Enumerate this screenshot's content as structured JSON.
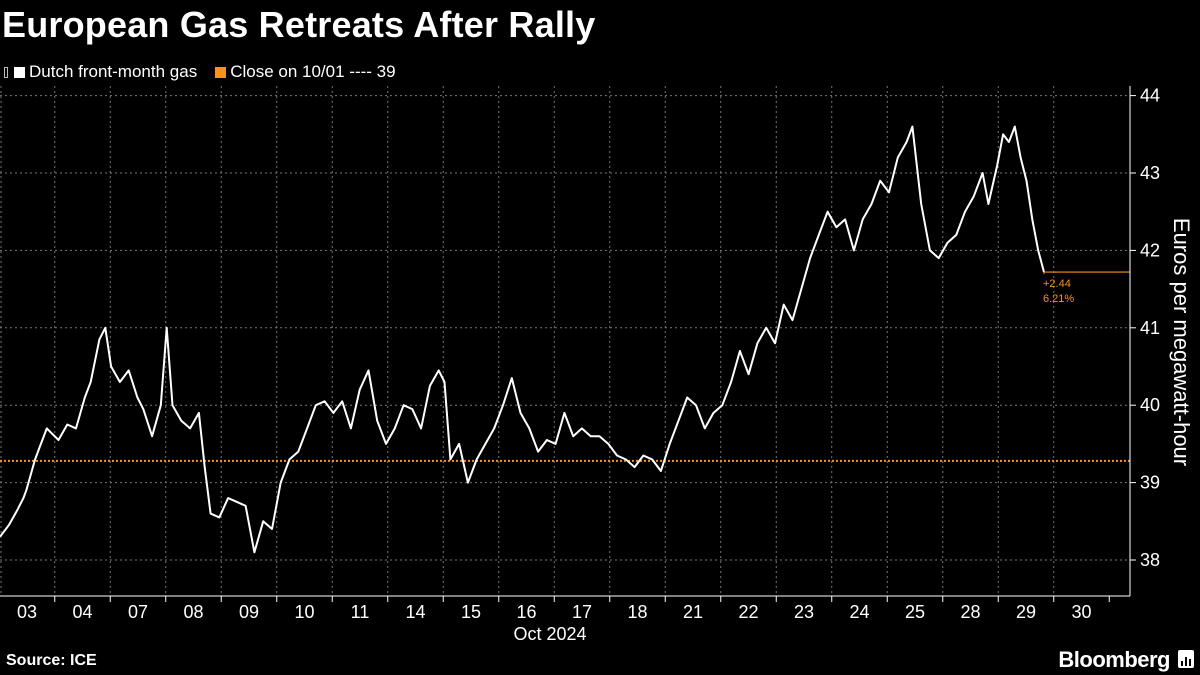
{
  "title": "European Gas Retreats After Rally",
  "legend": [
    {
      "label": "Dutch front-month gas",
      "color": "#ffffff"
    },
    {
      "label": "Close on 10/01 ---- 39",
      "color": "#f7931e"
    }
  ],
  "source": "Source: ICE",
  "brand": "Bloomberg",
  "annotation": {
    "change": "+2.44",
    "pct": "6.21%"
  },
  "chart_data": {
    "type": "line",
    "title": "European Gas Retreats After Rally",
    "ylabel": "Euros per megawatt-hour",
    "xlabel": "Oct 2024",
    "ylim": [
      37.5,
      44.2
    ],
    "yticks": [
      38,
      39,
      40,
      41,
      42,
      43,
      44
    ],
    "xticks": [
      "03",
      "04",
      "07",
      "08",
      "09",
      "10",
      "11",
      "14",
      "15",
      "16",
      "17",
      "18",
      "21",
      "22",
      "23",
      "24",
      "25",
      "28",
      "29",
      "30"
    ],
    "reference_line": {
      "label": "Close on 10/01",
      "value": 39.28
    },
    "last_value": 41.72,
    "series": [
      {
        "name": "Dutch front-month gas",
        "points": [
          [
            0.0,
            38.3
          ],
          [
            0.15,
            38.45
          ],
          [
            0.3,
            38.65
          ],
          [
            0.4,
            38.8
          ],
          [
            0.45,
            38.9
          ],
          [
            0.6,
            39.3
          ],
          [
            0.7,
            39.5
          ],
          [
            0.8,
            39.7
          ],
          [
            1.0,
            39.55
          ],
          [
            1.15,
            39.75
          ],
          [
            1.3,
            39.7
          ],
          [
            1.45,
            40.1
          ],
          [
            1.55,
            40.3
          ],
          [
            1.7,
            40.85
          ],
          [
            1.8,
            41.0
          ],
          [
            1.9,
            40.5
          ],
          [
            2.05,
            40.3
          ],
          [
            2.2,
            40.45
          ],
          [
            2.35,
            40.1
          ],
          [
            2.45,
            39.95
          ],
          [
            2.6,
            39.6
          ],
          [
            2.75,
            40.0
          ],
          [
            2.85,
            41.0
          ],
          [
            2.95,
            40.0
          ],
          [
            3.1,
            39.8
          ],
          [
            3.25,
            39.7
          ],
          [
            3.4,
            39.9
          ],
          [
            3.5,
            39.2
          ],
          [
            3.6,
            38.6
          ],
          [
            3.75,
            38.55
          ],
          [
            3.9,
            38.8
          ],
          [
            4.05,
            38.75
          ],
          [
            4.2,
            38.7
          ],
          [
            4.35,
            38.1
          ],
          [
            4.5,
            38.5
          ],
          [
            4.65,
            38.4
          ],
          [
            4.8,
            39.0
          ],
          [
            4.95,
            39.3
          ],
          [
            5.1,
            39.4
          ],
          [
            5.25,
            39.7
          ],
          [
            5.4,
            40.0
          ],
          [
            5.55,
            40.05
          ],
          [
            5.7,
            39.9
          ],
          [
            5.85,
            40.05
          ],
          [
            6.0,
            39.7
          ],
          [
            6.15,
            40.2
          ],
          [
            6.3,
            40.45
          ],
          [
            6.45,
            39.8
          ],
          [
            6.6,
            39.5
          ],
          [
            6.75,
            39.7
          ],
          [
            6.9,
            40.0
          ],
          [
            7.05,
            39.95
          ],
          [
            7.2,
            39.7
          ],
          [
            7.35,
            40.25
          ],
          [
            7.5,
            40.45
          ],
          [
            7.6,
            40.3
          ],
          [
            7.7,
            39.3
          ],
          [
            7.85,
            39.5
          ],
          [
            8.0,
            39.0
          ],
          [
            8.15,
            39.3
          ],
          [
            8.3,
            39.5
          ],
          [
            8.45,
            39.7
          ],
          [
            8.6,
            40.0
          ],
          [
            8.75,
            40.35
          ],
          [
            8.9,
            39.9
          ],
          [
            9.05,
            39.7
          ],
          [
            9.2,
            39.4
          ],
          [
            9.35,
            39.55
          ],
          [
            9.5,
            39.5
          ],
          [
            9.65,
            39.9
          ],
          [
            9.8,
            39.6
          ],
          [
            9.95,
            39.7
          ],
          [
            10.1,
            39.6
          ],
          [
            10.25,
            39.6
          ],
          [
            10.4,
            39.5
          ],
          [
            10.55,
            39.35
          ],
          [
            10.7,
            39.3
          ],
          [
            10.85,
            39.2
          ],
          [
            11.0,
            39.35
          ],
          [
            11.15,
            39.3
          ],
          [
            11.3,
            39.15
          ],
          [
            11.45,
            39.5
          ],
          [
            11.6,
            39.8
          ],
          [
            11.75,
            40.1
          ],
          [
            11.9,
            40.0
          ],
          [
            12.05,
            39.7
          ],
          [
            12.2,
            39.9
          ],
          [
            12.35,
            40.0
          ],
          [
            12.5,
            40.3
          ],
          [
            12.65,
            40.7
          ],
          [
            12.8,
            40.4
          ],
          [
            12.95,
            40.8
          ],
          [
            13.1,
            41.0
          ],
          [
            13.25,
            40.8
          ],
          [
            13.4,
            41.3
          ],
          [
            13.55,
            41.1
          ],
          [
            13.7,
            41.5
          ],
          [
            13.85,
            41.9
          ],
          [
            14.0,
            42.2
          ],
          [
            14.15,
            42.5
          ],
          [
            14.3,
            42.3
          ],
          [
            14.45,
            42.4
          ],
          [
            14.6,
            42.0
          ],
          [
            14.75,
            42.4
          ],
          [
            14.9,
            42.6
          ],
          [
            15.05,
            42.9
          ],
          [
            15.2,
            42.75
          ],
          [
            15.35,
            43.2
          ],
          [
            15.5,
            43.4
          ],
          [
            15.6,
            43.6
          ],
          [
            15.75,
            42.6
          ],
          [
            15.9,
            42.0
          ],
          [
            16.05,
            41.9
          ],
          [
            16.2,
            42.1
          ],
          [
            16.35,
            42.2
          ],
          [
            16.5,
            42.5
          ],
          [
            16.65,
            42.7
          ],
          [
            16.8,
            43.0
          ],
          [
            16.9,
            42.6
          ],
          [
            17.05,
            43.1
          ],
          [
            17.15,
            43.5
          ],
          [
            17.25,
            43.4
          ],
          [
            17.35,
            43.6
          ],
          [
            17.45,
            43.2
          ],
          [
            17.55,
            42.9
          ],
          [
            17.65,
            42.4
          ],
          [
            17.75,
            42.0
          ],
          [
            17.85,
            41.72
          ]
        ]
      }
    ]
  }
}
